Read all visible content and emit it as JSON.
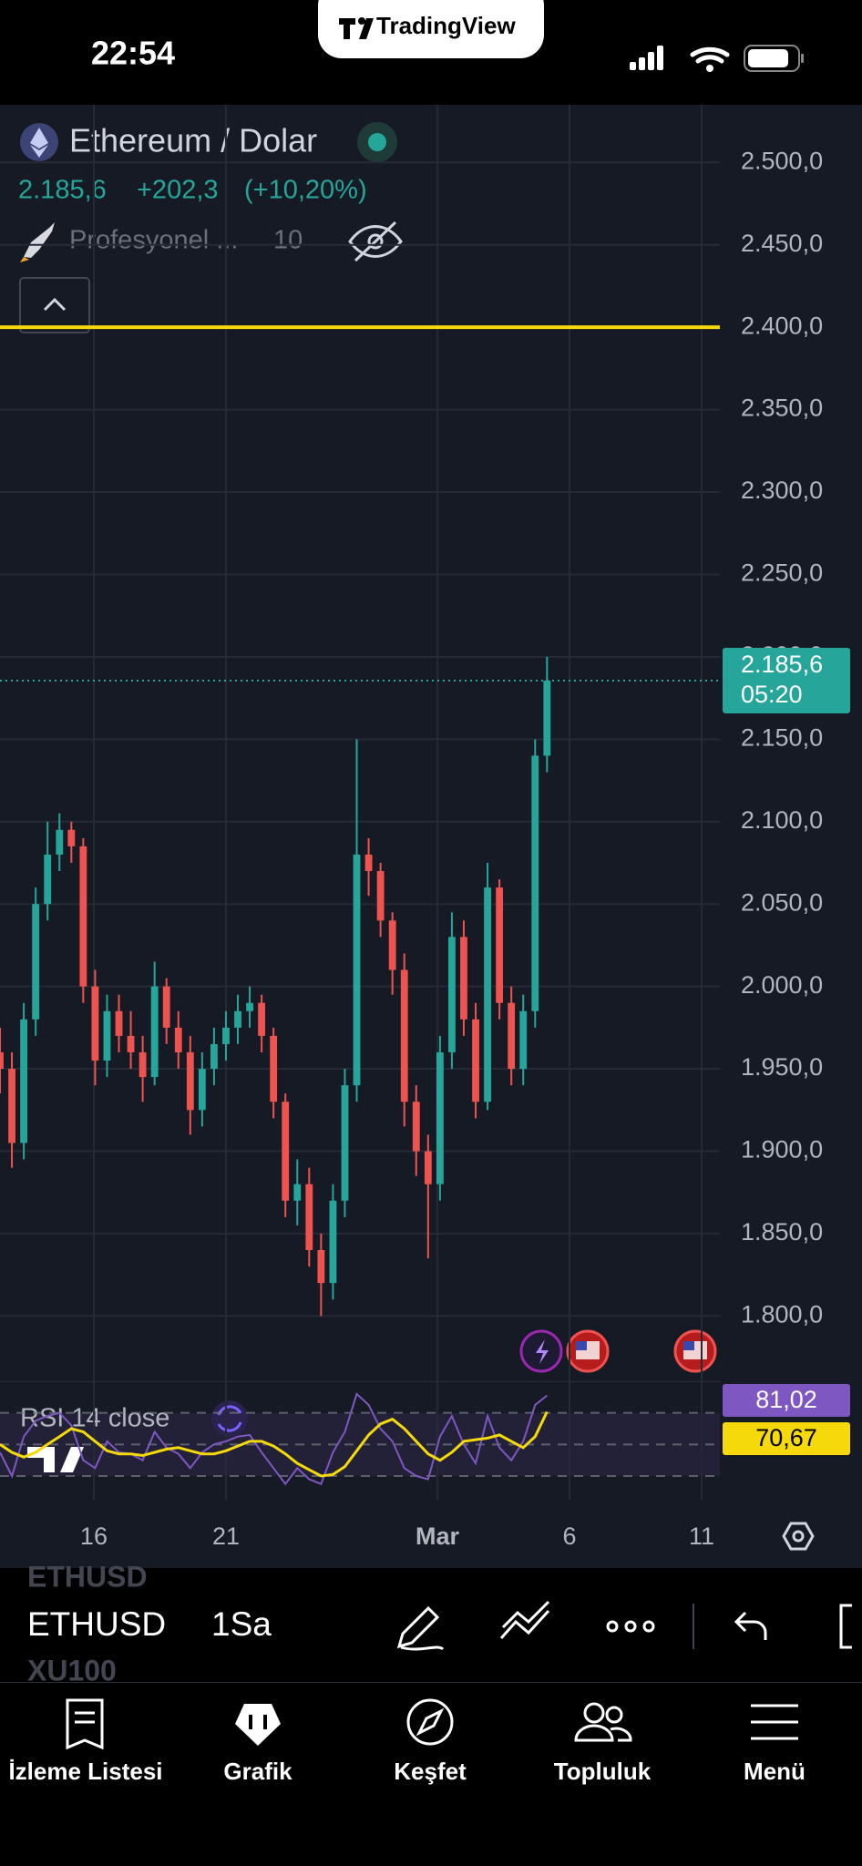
{
  "status_bar": {
    "time": "22:54"
  },
  "banner": {
    "brand": "TradingView"
  },
  "header": {
    "symbol": "Ethereum / Dolar",
    "price": "2.185,6",
    "change": "+202,3",
    "change_pct": "(+10,20%)",
    "indicator": "Profesyonel ...",
    "indicator_count": "10"
  },
  "chart_data": {
    "type": "candlestick",
    "x": [
      12.45,
      12.9,
      13.35,
      13.8,
      14.25,
      14.7,
      15.15,
      15.6,
      16.05,
      16.5,
      16.95,
      17.4,
      17.85,
      18.3,
      18.75,
      19.2,
      19.65,
      20.1,
      20.55,
      21,
      21.45,
      21.9,
      22.35,
      22.8,
      23.25,
      23.7,
      24.15,
      24.6,
      25.05,
      25.5,
      25.95,
      26.4,
      26.85,
      27.3,
      27.75,
      28.2,
      28.65,
      29.1,
      29.55,
      30,
      30.45,
      30.9,
      31.35,
      31.8,
      32.25,
      32.7,
      33.15
    ],
    "open": [
      1960,
      1950,
      1905,
      1980,
      2050,
      2080,
      2095,
      2085,
      2000,
      1955,
      1985,
      1970,
      1960,
      1945,
      2000,
      1975,
      1960,
      1925,
      1950,
      1965,
      1975,
      1985,
      1990,
      1970,
      1930,
      1870,
      1880,
      1840,
      1820,
      1870,
      1940,
      2080,
      2070,
      2040,
      2010,
      1930,
      1900,
      1880,
      1960,
      2030,
      1980,
      1930,
      2060,
      1990,
      1950,
      1985,
      2140
    ],
    "high": [
      1975,
      1960,
      1990,
      2060,
      2100,
      2105,
      2100,
      2090,
      2010,
      1995,
      1995,
      1985,
      1970,
      2015,
      2005,
      1985,
      1970,
      1960,
      1975,
      1985,
      1995,
      2000,
      1995,
      1975,
      1935,
      1895,
      1890,
      1850,
      1880,
      1950,
      2150,
      2090,
      2075,
      2045,
      2020,
      1940,
      1910,
      1970,
      2045,
      2040,
      1990,
      2075,
      2065,
      2000,
      1995,
      2150,
      2200
    ],
    "low": [
      1935,
      1890,
      1895,
      1970,
      2040,
      2070,
      2075,
      1990,
      1940,
      1945,
      1960,
      1950,
      1930,
      1940,
      1965,
      1950,
      1910,
      1915,
      1940,
      1955,
      1965,
      1975,
      1960,
      1920,
      1860,
      1855,
      1830,
      1800,
      1810,
      1860,
      1930,
      2055,
      2030,
      1995,
      1915,
      1885,
      1835,
      1870,
      1950,
      1970,
      1920,
      1925,
      1980,
      1940,
      1940,
      1975,
      2130
    ],
    "close": [
      1950,
      1905,
      1980,
      2050,
      2080,
      2095,
      2085,
      2000,
      1955,
      1985,
      1970,
      1960,
      1945,
      2000,
      1975,
      1960,
      1925,
      1950,
      1965,
      1975,
      1985,
      1990,
      1970,
      1930,
      1870,
      1880,
      1840,
      1820,
      1870,
      1940,
      2080,
      2070,
      2040,
      2010,
      1930,
      1900,
      1880,
      1960,
      2030,
      1980,
      1930,
      2060,
      1990,
      1950,
      1985,
      2140,
      2185.6
    ],
    "up_color": "#26a69a",
    "down_color": "#ef5350",
    "xlim": [
      12.45,
      39.69
    ],
    "xticks": [
      16,
      21,
      {
        "value": 29,
        "label": "Mar"
      },
      {
        "value": 34,
        "label": "6"
      },
      {
        "value": 39,
        "label": "11"
      }
    ],
    "ylim": [
      1760,
      2535
    ],
    "yticks": [
      {
        "value": 1800,
        "label": "1.800,0"
      },
      {
        "value": 1850,
        "label": "1.850,0"
      },
      {
        "value": 1900,
        "label": "1.900,0"
      },
      {
        "value": 1950,
        "label": "1.950,0"
      },
      {
        "value": 2000,
        "label": "2.000,0"
      },
      {
        "value": 2050,
        "label": "2.050,0"
      },
      {
        "value": 2100,
        "label": "2.100,0"
      },
      {
        "value": 2150,
        "label": "2.150,0"
      },
      {
        "value": 2200,
        "label": "2.200,0"
      },
      {
        "value": 2250,
        "label": "2.250,0"
      },
      {
        "value": 2300,
        "label": "2.300,0"
      },
      {
        "value": 2350,
        "label": "2.350,0"
      },
      {
        "value": 2400,
        "label": "2.400,0"
      },
      {
        "value": 2450,
        "label": "2.450,0"
      },
      {
        "value": 2500,
        "label": "2.500,0"
      }
    ],
    "grid": true,
    "hline": {
      "value": 2400,
      "color": "#f5d90a"
    },
    "last_price": {
      "value": 2185.6,
      "label": "2.185,6",
      "countdown": "05:20",
      "color": "#26a69a"
    },
    "indicator": {
      "title": "RSI 14 close",
      "ylim": [
        15,
        90
      ],
      "levels": [
        30,
        50,
        70
      ],
      "series": [
        {
          "color": "#7e57c2",
          "values": [
            45,
            30,
            55,
            65,
            68,
            70,
            62,
            40,
            35,
            52,
            45,
            44,
            40,
            58,
            48,
            44,
            35,
            45,
            50,
            52,
            55,
            56,
            45,
            35,
            25,
            35,
            28,
            25,
            45,
            58,
            82,
            75,
            60,
            52,
            35,
            30,
            28,
            55,
            68,
            50,
            38,
            68,
            48,
            40,
            52,
            75,
            81.02
          ],
          "last_label": "81,02"
        },
        {
          "color": "#f5d90a",
          "values": [
            50,
            45,
            42,
            45,
            50,
            55,
            60,
            58,
            52,
            46,
            44,
            44,
            43,
            45,
            47,
            48,
            46,
            44,
            44,
            46,
            49,
            52,
            52,
            49,
            44,
            38,
            34,
            30,
            31,
            36,
            46,
            56,
            63,
            66,
            60,
            52,
            44,
            40,
            45,
            52,
            53,
            54,
            56,
            52,
            48,
            55,
            70.67
          ],
          "last_label": "70,67"
        }
      ]
    }
  },
  "toolbar": {
    "prev_symbol": "ETHUSD",
    "symbol": "ETHUSD",
    "next_symbol": "XU100",
    "interval": "1Sa"
  },
  "tabs": [
    "İzleme Listesi",
    "Grafik",
    "Keşfet",
    "Topluluk",
    "Menü"
  ]
}
